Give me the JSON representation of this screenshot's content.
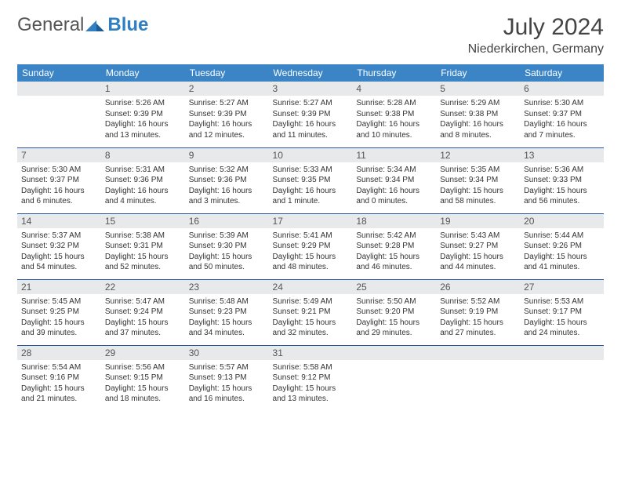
{
  "logo": {
    "text1": "General",
    "text2": "Blue"
  },
  "title": "July 2024",
  "location": "Niederkirchen, Germany",
  "colors": {
    "header_bg": "#3b85c6",
    "header_text": "#ffffff",
    "daynum_bg": "#e8e9ea",
    "row_border": "#27579b",
    "logo_accent": "#2f7fc2",
    "body_text": "#333333"
  },
  "typography": {
    "title_fontsize": 30,
    "location_fontsize": 16,
    "weekday_fontsize": 12,
    "daynum_fontsize": 12,
    "body_fontsize": 10
  },
  "weekdays": [
    "Sunday",
    "Monday",
    "Tuesday",
    "Wednesday",
    "Thursday",
    "Friday",
    "Saturday"
  ],
  "weeks": [
    [
      null,
      {
        "n": "1",
        "sr": "Sunrise: 5:26 AM",
        "ss": "Sunset: 9:39 PM",
        "d1": "Daylight: 16 hours",
        "d2": "and 13 minutes."
      },
      {
        "n": "2",
        "sr": "Sunrise: 5:27 AM",
        "ss": "Sunset: 9:39 PM",
        "d1": "Daylight: 16 hours",
        "d2": "and 12 minutes."
      },
      {
        "n": "3",
        "sr": "Sunrise: 5:27 AM",
        "ss": "Sunset: 9:39 PM",
        "d1": "Daylight: 16 hours",
        "d2": "and 11 minutes."
      },
      {
        "n": "4",
        "sr": "Sunrise: 5:28 AM",
        "ss": "Sunset: 9:38 PM",
        "d1": "Daylight: 16 hours",
        "d2": "and 10 minutes."
      },
      {
        "n": "5",
        "sr": "Sunrise: 5:29 AM",
        "ss": "Sunset: 9:38 PM",
        "d1": "Daylight: 16 hours",
        "d2": "and 8 minutes."
      },
      {
        "n": "6",
        "sr": "Sunrise: 5:30 AM",
        "ss": "Sunset: 9:37 PM",
        "d1": "Daylight: 16 hours",
        "d2": "and 7 minutes."
      }
    ],
    [
      {
        "n": "7",
        "sr": "Sunrise: 5:30 AM",
        "ss": "Sunset: 9:37 PM",
        "d1": "Daylight: 16 hours",
        "d2": "and 6 minutes."
      },
      {
        "n": "8",
        "sr": "Sunrise: 5:31 AM",
        "ss": "Sunset: 9:36 PM",
        "d1": "Daylight: 16 hours",
        "d2": "and 4 minutes."
      },
      {
        "n": "9",
        "sr": "Sunrise: 5:32 AM",
        "ss": "Sunset: 9:36 PM",
        "d1": "Daylight: 16 hours",
        "d2": "and 3 minutes."
      },
      {
        "n": "10",
        "sr": "Sunrise: 5:33 AM",
        "ss": "Sunset: 9:35 PM",
        "d1": "Daylight: 16 hours",
        "d2": "and 1 minute."
      },
      {
        "n": "11",
        "sr": "Sunrise: 5:34 AM",
        "ss": "Sunset: 9:34 PM",
        "d1": "Daylight: 16 hours",
        "d2": "and 0 minutes."
      },
      {
        "n": "12",
        "sr": "Sunrise: 5:35 AM",
        "ss": "Sunset: 9:34 PM",
        "d1": "Daylight: 15 hours",
        "d2": "and 58 minutes."
      },
      {
        "n": "13",
        "sr": "Sunrise: 5:36 AM",
        "ss": "Sunset: 9:33 PM",
        "d1": "Daylight: 15 hours",
        "d2": "and 56 minutes."
      }
    ],
    [
      {
        "n": "14",
        "sr": "Sunrise: 5:37 AM",
        "ss": "Sunset: 9:32 PM",
        "d1": "Daylight: 15 hours",
        "d2": "and 54 minutes."
      },
      {
        "n": "15",
        "sr": "Sunrise: 5:38 AM",
        "ss": "Sunset: 9:31 PM",
        "d1": "Daylight: 15 hours",
        "d2": "and 52 minutes."
      },
      {
        "n": "16",
        "sr": "Sunrise: 5:39 AM",
        "ss": "Sunset: 9:30 PM",
        "d1": "Daylight: 15 hours",
        "d2": "and 50 minutes."
      },
      {
        "n": "17",
        "sr": "Sunrise: 5:41 AM",
        "ss": "Sunset: 9:29 PM",
        "d1": "Daylight: 15 hours",
        "d2": "and 48 minutes."
      },
      {
        "n": "18",
        "sr": "Sunrise: 5:42 AM",
        "ss": "Sunset: 9:28 PM",
        "d1": "Daylight: 15 hours",
        "d2": "and 46 minutes."
      },
      {
        "n": "19",
        "sr": "Sunrise: 5:43 AM",
        "ss": "Sunset: 9:27 PM",
        "d1": "Daylight: 15 hours",
        "d2": "and 44 minutes."
      },
      {
        "n": "20",
        "sr": "Sunrise: 5:44 AM",
        "ss": "Sunset: 9:26 PM",
        "d1": "Daylight: 15 hours",
        "d2": "and 41 minutes."
      }
    ],
    [
      {
        "n": "21",
        "sr": "Sunrise: 5:45 AM",
        "ss": "Sunset: 9:25 PM",
        "d1": "Daylight: 15 hours",
        "d2": "and 39 minutes."
      },
      {
        "n": "22",
        "sr": "Sunrise: 5:47 AM",
        "ss": "Sunset: 9:24 PM",
        "d1": "Daylight: 15 hours",
        "d2": "and 37 minutes."
      },
      {
        "n": "23",
        "sr": "Sunrise: 5:48 AM",
        "ss": "Sunset: 9:23 PM",
        "d1": "Daylight: 15 hours",
        "d2": "and 34 minutes."
      },
      {
        "n": "24",
        "sr": "Sunrise: 5:49 AM",
        "ss": "Sunset: 9:21 PM",
        "d1": "Daylight: 15 hours",
        "d2": "and 32 minutes."
      },
      {
        "n": "25",
        "sr": "Sunrise: 5:50 AM",
        "ss": "Sunset: 9:20 PM",
        "d1": "Daylight: 15 hours",
        "d2": "and 29 minutes."
      },
      {
        "n": "26",
        "sr": "Sunrise: 5:52 AM",
        "ss": "Sunset: 9:19 PM",
        "d1": "Daylight: 15 hours",
        "d2": "and 27 minutes."
      },
      {
        "n": "27",
        "sr": "Sunrise: 5:53 AM",
        "ss": "Sunset: 9:17 PM",
        "d1": "Daylight: 15 hours",
        "d2": "and 24 minutes."
      }
    ],
    [
      {
        "n": "28",
        "sr": "Sunrise: 5:54 AM",
        "ss": "Sunset: 9:16 PM",
        "d1": "Daylight: 15 hours",
        "d2": "and 21 minutes."
      },
      {
        "n": "29",
        "sr": "Sunrise: 5:56 AM",
        "ss": "Sunset: 9:15 PM",
        "d1": "Daylight: 15 hours",
        "d2": "and 18 minutes."
      },
      {
        "n": "30",
        "sr": "Sunrise: 5:57 AM",
        "ss": "Sunset: 9:13 PM",
        "d1": "Daylight: 15 hours",
        "d2": "and 16 minutes."
      },
      {
        "n": "31",
        "sr": "Sunrise: 5:58 AM",
        "ss": "Sunset: 9:12 PM",
        "d1": "Daylight: 15 hours",
        "d2": "and 13 minutes."
      },
      null,
      null,
      null
    ]
  ]
}
